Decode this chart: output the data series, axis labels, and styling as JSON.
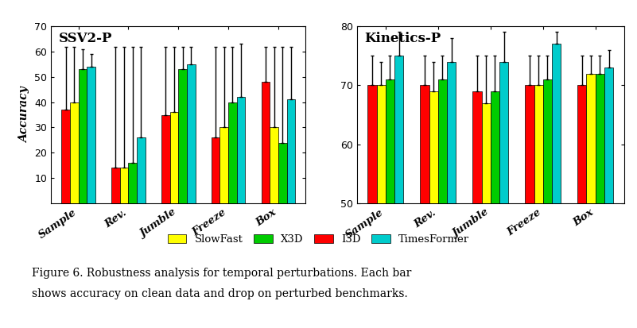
{
  "ssv2": {
    "title": "SSV2-P",
    "ylim": [
      0,
      70
    ],
    "yticks": [
      10,
      20,
      30,
      40,
      50,
      60,
      70
    ],
    "categories": [
      "Sample",
      "Rev.",
      "Jumble",
      "Freeze",
      "Box"
    ],
    "colors": [
      "#ff0000",
      "#ffff00",
      "#00cc00",
      "#00cccc"
    ],
    "values": [
      [
        37,
        40,
        53,
        54
      ],
      [
        14,
        14,
        16,
        26
      ],
      [
        35,
        36,
        53,
        55
      ],
      [
        26,
        30,
        40,
        42
      ],
      [
        48,
        30,
        24,
        41
      ]
    ],
    "errors": [
      [
        25,
        22,
        8,
        5
      ],
      [
        48,
        48,
        46,
        36
      ],
      [
        27,
        26,
        9,
        7
      ],
      [
        36,
        32,
        22,
        21
      ],
      [
        14,
        32,
        38,
        21
      ]
    ]
  },
  "kinetics": {
    "title": "Kinetics-P",
    "ylim": [
      50,
      80
    ],
    "yticks": [
      50,
      60,
      70,
      80
    ],
    "categories": [
      "Sample",
      "Rev.",
      "Jumble",
      "Freeze",
      "Box"
    ],
    "colors": [
      "#ff0000",
      "#ffff00",
      "#00cc00",
      "#00cccc"
    ],
    "values": [
      [
        70,
        70,
        71,
        75
      ],
      [
        70,
        69,
        71,
        74
      ],
      [
        69,
        67,
        69,
        74
      ],
      [
        70,
        70,
        71,
        77
      ],
      [
        70,
        72,
        72,
        73
      ]
    ],
    "errors": [
      [
        5,
        4,
        4,
        4
      ],
      [
        5,
        5,
        4,
        4
      ],
      [
        6,
        8,
        6,
        5
      ],
      [
        5,
        5,
        4,
        2
      ],
      [
        5,
        3,
        3,
        3
      ]
    ]
  },
  "legend_labels": [
    "SlowFast",
    "X3D",
    "I3D",
    "TimesFormer"
  ],
  "legend_colors": [
    "#ffff00",
    "#00cc00",
    "#ff0000",
    "#00cccc"
  ],
  "ylabel": "Accuracy",
  "bar_width": 0.17,
  "caption_line1": "Figure 6. Robustness analysis for temporal perturbations. Each bar",
  "caption_line2": "shows accuracy on clean data and drop on perturbed benchmarks."
}
